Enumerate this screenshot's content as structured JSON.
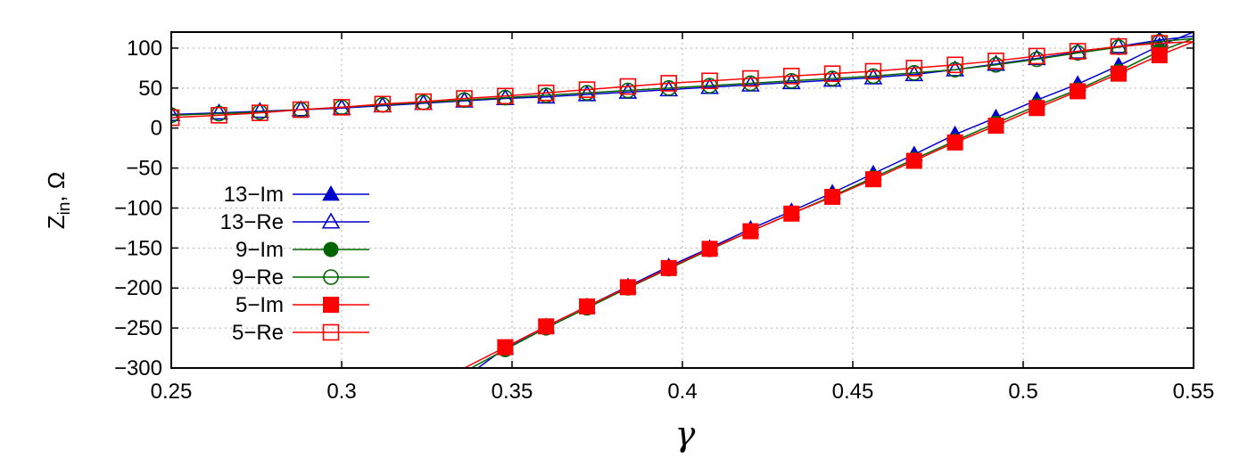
{
  "chart_data": {
    "type": "line",
    "title": "",
    "xlabel": "γ",
    "ylabel_main": "Z",
    "ylabel_sub": "in",
    "ylabel_suffix": ", Ω",
    "xlim": [
      0.25,
      0.55
    ],
    "ylim": [
      -300,
      120
    ],
    "xticks": [
      0.25,
      0.3,
      0.35,
      0.4,
      0.45,
      0.5,
      0.55
    ],
    "xtick_labels": [
      "0.25",
      "0.3",
      "0.35",
      "0.4",
      "0.45",
      "0.5",
      "0.55"
    ],
    "yticks": [
      100,
      50,
      0,
      -50,
      -100,
      -150,
      -200,
      -250,
      -300
    ],
    "ytick_labels": [
      "100",
      "50",
      "0",
      "−50",
      "−100",
      "−150",
      "−200",
      "−250",
      "−300"
    ],
    "grid": true,
    "legend_position": "bottom-left",
    "series": [
      {
        "name": "13−Im",
        "color": "#0000cc",
        "marker": "triangle",
        "filled": true,
        "x": [
          0.34,
          0.348,
          0.36,
          0.372,
          0.384,
          0.396,
          0.408,
          0.42,
          0.432,
          0.444,
          0.456,
          0.468,
          0.48,
          0.492,
          0.504,
          0.516,
          0.528,
          0.54,
          0.55
        ],
        "y": [
          -300,
          -275,
          -248,
          -223,
          -198,
          -173,
          -150,
          -126,
          -104,
          -81,
          -57,
          -33,
          -8,
          13,
          35,
          55,
          78,
          103,
          120
        ]
      },
      {
        "name": "13−Re",
        "color": "#0000cc",
        "marker": "triangle",
        "filled": false,
        "x": [
          0.25,
          0.264,
          0.276,
          0.288,
          0.3,
          0.312,
          0.324,
          0.336,
          0.348,
          0.36,
          0.372,
          0.384,
          0.396,
          0.408,
          0.42,
          0.432,
          0.444,
          0.456,
          0.468,
          0.48,
          0.492,
          0.504,
          0.516,
          0.528,
          0.54,
          0.55
        ],
        "y": [
          17,
          19,
          21,
          23,
          25,
          28,
          31,
          34,
          37,
          39,
          42,
          45,
          48,
          51,
          54,
          57,
          60,
          63,
          67,
          73,
          80,
          87,
          95,
          102,
          110,
          115
        ]
      },
      {
        "name": "9−Im",
        "color": "#006400",
        "marker": "circle",
        "filled": true,
        "x": [
          0.338,
          0.348,
          0.36,
          0.372,
          0.384,
          0.396,
          0.408,
          0.42,
          0.432,
          0.444,
          0.456,
          0.468,
          0.48,
          0.492,
          0.504,
          0.516,
          0.528,
          0.54,
          0.55
        ],
        "y": [
          -300,
          -277,
          -250,
          -225,
          -200,
          -176,
          -152,
          -129,
          -107,
          -85,
          -62,
          -39,
          -16,
          6,
          28,
          48,
          71,
          96,
          112
        ]
      },
      {
        "name": "9−Re",
        "color": "#006400",
        "marker": "circle",
        "filled": false,
        "x": [
          0.25,
          0.264,
          0.276,
          0.288,
          0.3,
          0.312,
          0.324,
          0.336,
          0.348,
          0.36,
          0.372,
          0.384,
          0.396,
          0.408,
          0.42,
          0.432,
          0.444,
          0.456,
          0.468,
          0.48,
          0.492,
          0.504,
          0.516,
          0.528,
          0.54,
          0.55
        ],
        "y": [
          16,
          18,
          20,
          23,
          26,
          29,
          32,
          35,
          38,
          41,
          44,
          47,
          50,
          53,
          56,
          59,
          62,
          65,
          69,
          73,
          79,
          86,
          94,
          101,
          108,
          112
        ]
      },
      {
        "name": "5−Im",
        "color": "#ff0000",
        "marker": "square",
        "filled": true,
        "x": [
          0.336,
          0.348,
          0.36,
          0.372,
          0.384,
          0.396,
          0.408,
          0.42,
          0.432,
          0.444,
          0.456,
          0.468,
          0.48,
          0.492,
          0.504,
          0.516,
          0.528,
          0.54,
          0.55
        ],
        "y": [
          -300,
          -274,
          -248,
          -223,
          -199,
          -175,
          -151,
          -129,
          -107,
          -86,
          -64,
          -41,
          -18,
          3,
          25,
          46,
          68,
          91,
          108
        ]
      },
      {
        "name": "5−Re",
        "color": "#ff0000",
        "marker": "square",
        "filled": false,
        "x": [
          0.25,
          0.264,
          0.276,
          0.288,
          0.3,
          0.312,
          0.324,
          0.336,
          0.348,
          0.36,
          0.372,
          0.384,
          0.396,
          0.408,
          0.42,
          0.432,
          0.444,
          0.456,
          0.468,
          0.48,
          0.492,
          0.504,
          0.516,
          0.528,
          0.54,
          0.55
        ],
        "y": [
          13,
          16,
          19,
          23,
          26,
          30,
          33,
          37,
          40,
          44,
          48,
          52,
          56,
          59,
          62,
          65,
          68,
          71,
          75,
          79,
          84,
          90,
          96,
          102,
          106,
          108
        ]
      }
    ]
  }
}
